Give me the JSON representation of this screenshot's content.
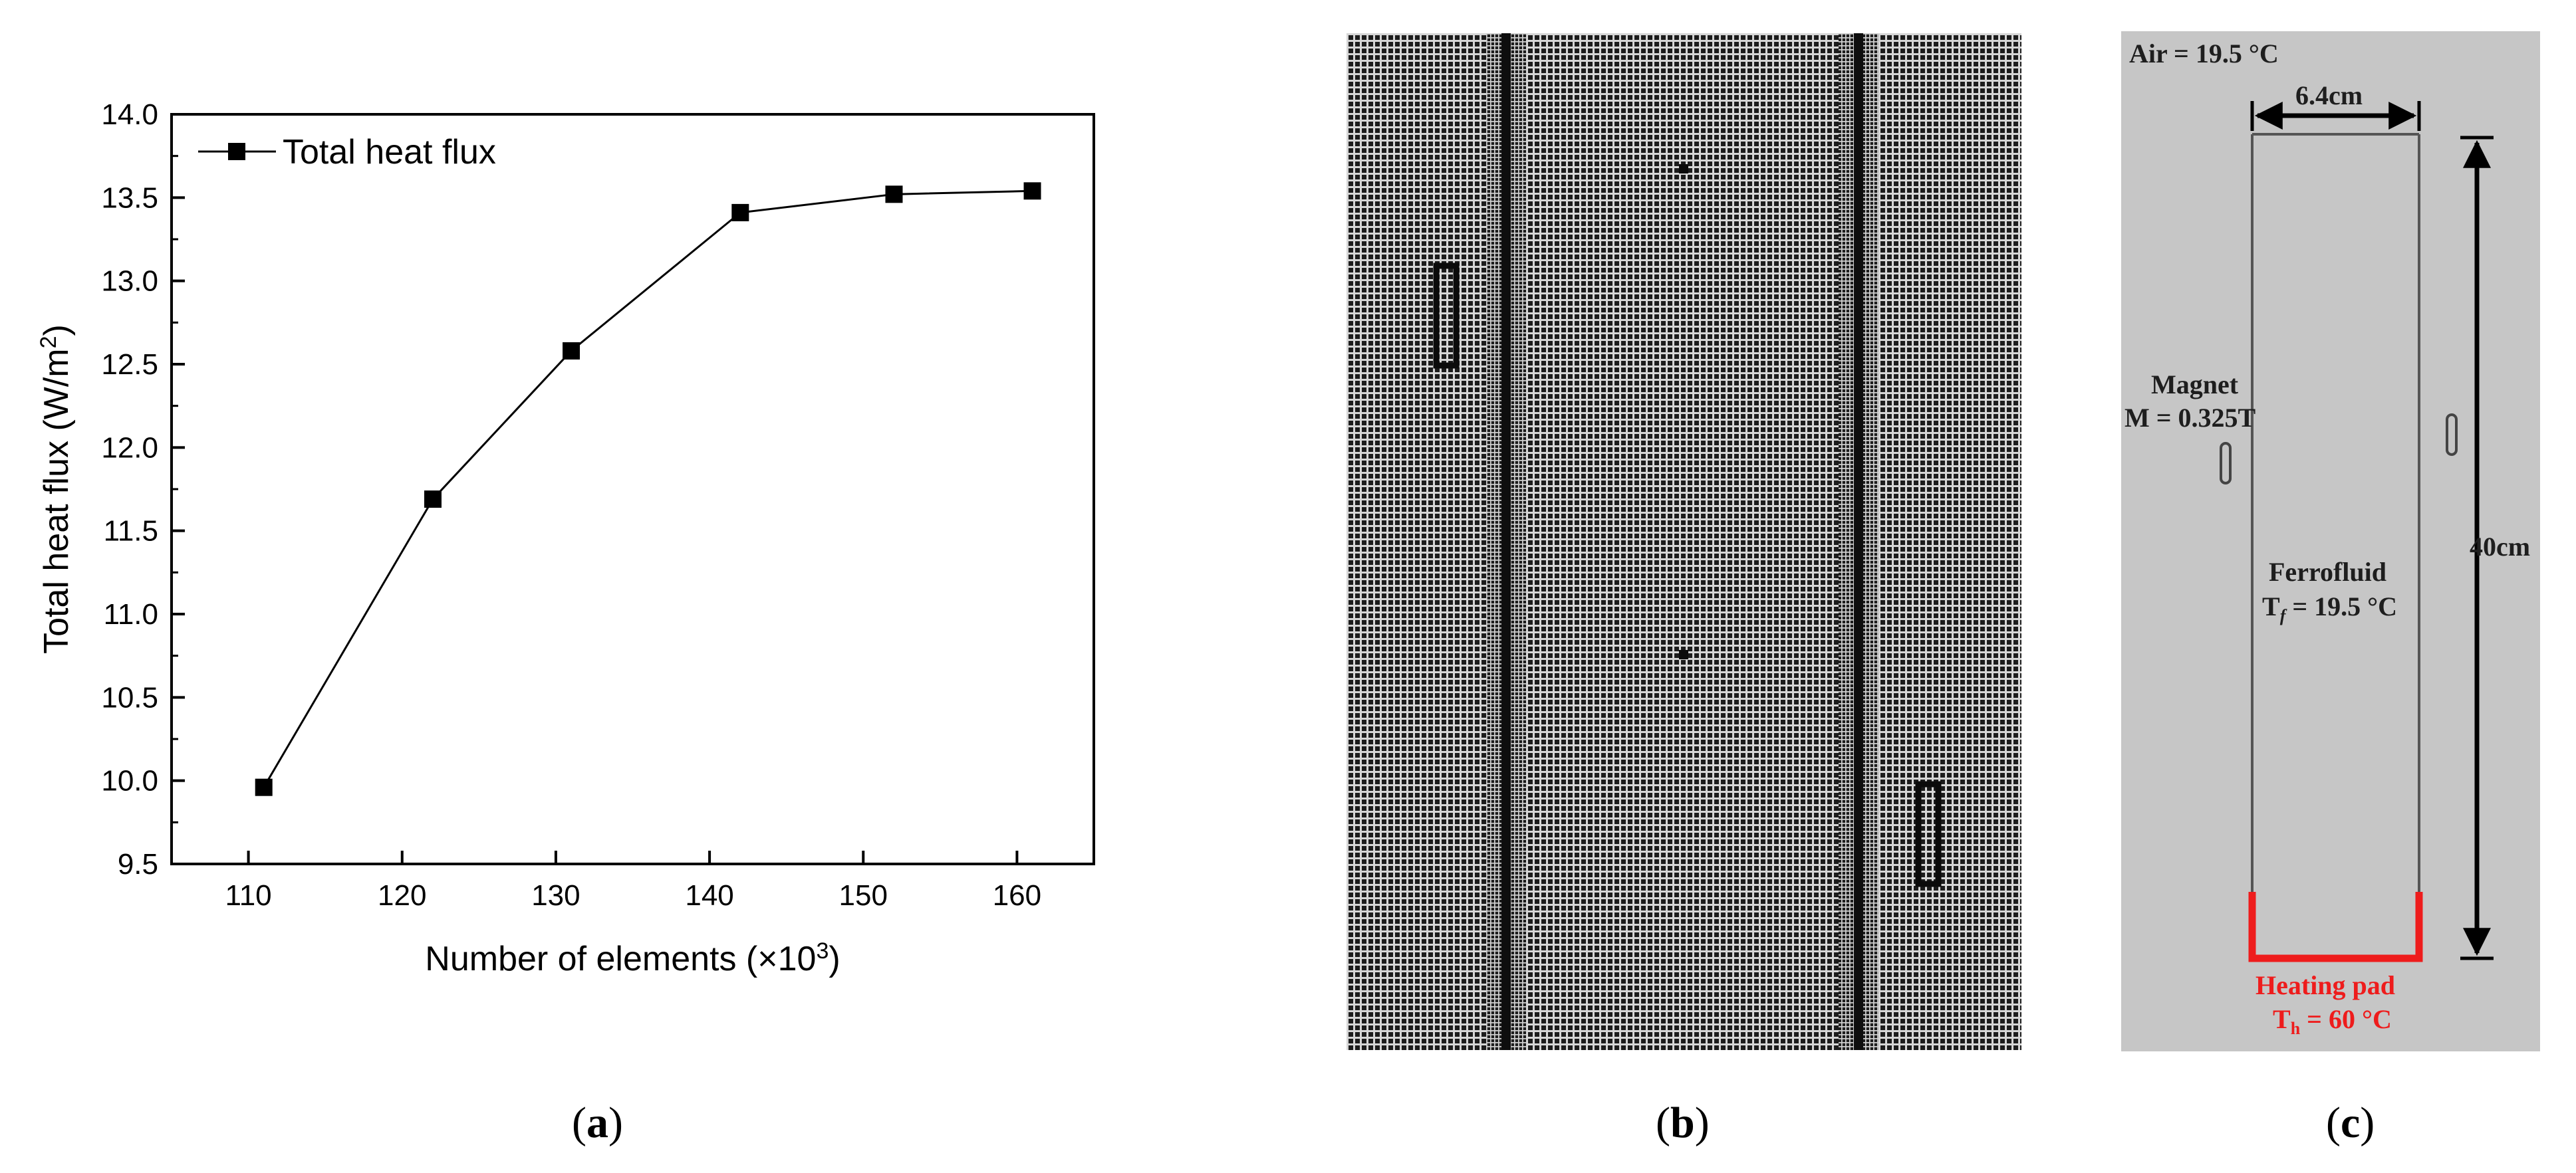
{
  "panels": {
    "a": "a",
    "b": "b",
    "c": "c"
  },
  "chart_data": {
    "type": "line",
    "title": "",
    "xlabel": "Number of elements (×10",
    "xlabel_sup": "3",
    "xlabel_end": ")",
    "ylabel": "Total heat flux (W/m",
    "ylabel_sup": "2",
    "ylabel_end": ")",
    "xlim": [
      105,
      165
    ],
    "ylim": [
      9.5,
      14.0
    ],
    "xticks": [
      110,
      120,
      130,
      140,
      150,
      160
    ],
    "yticks": [
      "9.5",
      "10.0",
      "10.5",
      "11.0",
      "11.5",
      "12.0",
      "12.5",
      "13.0",
      "13.5",
      "14.0"
    ],
    "grid": false,
    "legend_position": "top-left",
    "series": [
      {
        "name": "Total heat flux",
        "marker": "square",
        "color": "#000000",
        "x": [
          111,
          122,
          131,
          142,
          152,
          161
        ],
        "y": [
          9.96,
          11.69,
          12.58,
          13.41,
          13.52,
          13.54
        ]
      }
    ]
  },
  "mesh": {
    "background": "#1a1a1a",
    "line_color": "#d8d8d8"
  },
  "schematic": {
    "air": "Air = 19.5 °C",
    "width_label": "6.4cm",
    "height_label": "40cm",
    "magnet_label": "Magnet",
    "magnet_value": "M = 0.325T",
    "fluid_label": "Ferrofluid",
    "fluid_temp_T": "T",
    "fluid_temp_sub": "f",
    "fluid_temp_rest": " = 19.5 °C",
    "heater_label": "Heating pad",
    "heater_T": "T",
    "heater_sub": "h",
    "heater_rest": " = 60 °C",
    "heater_color": "#ee1c1c"
  }
}
